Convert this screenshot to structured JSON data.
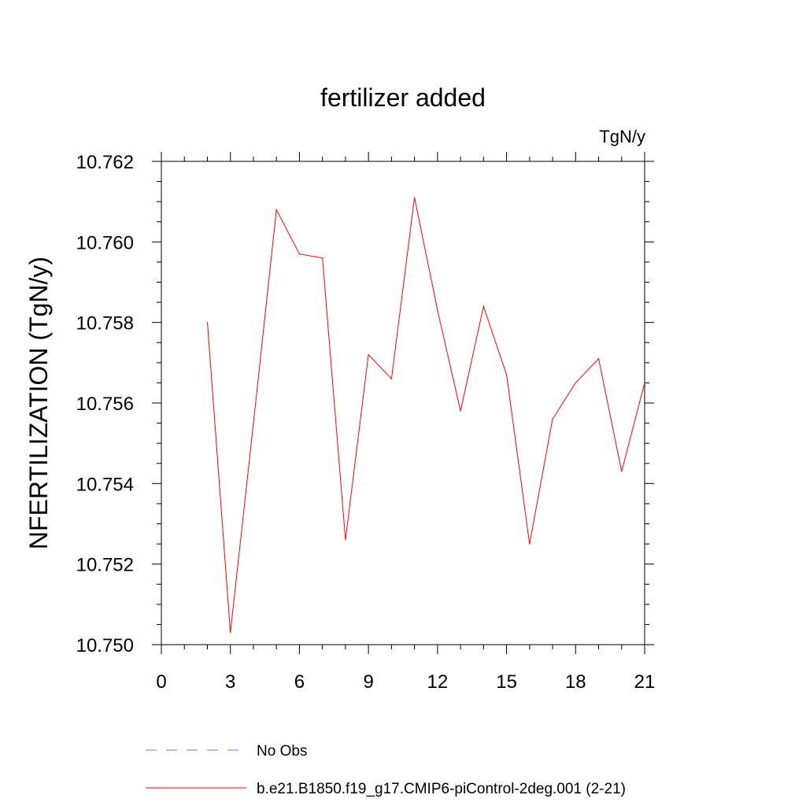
{
  "chart_data": {
    "type": "line",
    "title": "fertilizer added",
    "units_label": "TgN/y",
    "ylabel": "NFERTILIZATION  (TgN/y)",
    "xlabel": "",
    "xlim": [
      0,
      21
    ],
    "ylim": [
      10.75,
      10.762
    ],
    "xticks": [
      "0",
      "3",
      "6",
      "9",
      "12",
      "15",
      "18",
      "21"
    ],
    "yticks": [
      "10.750",
      "10.752",
      "10.754",
      "10.756",
      "10.758",
      "10.760",
      "10.762"
    ],
    "grid": false,
    "legend_position": "bottom",
    "series": [
      {
        "name": "No Obs",
        "color": "#7777cc",
        "style": "dashed",
        "x": [],
        "y": []
      },
      {
        "name": "b.e21.B1850.f19_g17.CMIP6-piControl-2deg.001 (2-21)",
        "color": "#ff0000",
        "style": "solid",
        "x": [
          2,
          3,
          4,
          5,
          6,
          7,
          8,
          9,
          10,
          11,
          12,
          13,
          14,
          15,
          16,
          17,
          18,
          19,
          20,
          21
        ],
        "y": [
          10.758,
          10.7503,
          10.7555,
          10.7608,
          10.7597,
          10.7596,
          10.7526,
          10.7572,
          10.7566,
          10.7611,
          10.7583,
          10.7558,
          10.7584,
          10.7567,
          10.7525,
          10.7556,
          10.7565,
          10.7571,
          10.7543,
          10.7565
        ]
      }
    ]
  }
}
